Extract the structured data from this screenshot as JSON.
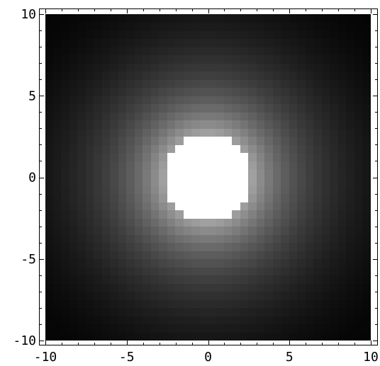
{
  "chart_data": {
    "type": "heatmap",
    "title": "",
    "xlabel": "",
    "ylabel": "",
    "xlim": [
      -10,
      10
    ],
    "ylim": [
      -10,
      10
    ],
    "grid": false,
    "colormap": "grayscale",
    "color_low": "#000000",
    "color_high": "#ffffff",
    "value_description": "radially symmetric intensity centered at (0,0); saturated white for r < 2.7, decaying toward black at the corners",
    "center": [
      0,
      0
    ],
    "saturation_radius": 2.7,
    "x_ticks": [
      {
        "value": -10,
        "label": "-10"
      },
      {
        "value": -5,
        "label": "-5"
      },
      {
        "value": 0,
        "label": "0"
      },
      {
        "value": 5,
        "label": "5"
      },
      {
        "value": 10,
        "label": "10"
      }
    ],
    "y_ticks": [
      {
        "value": 10,
        "label": "10"
      },
      {
        "value": 5,
        "label": "5"
      },
      {
        "value": 0,
        "label": "0"
      },
      {
        "value": -5,
        "label": "-5"
      },
      {
        "value": -10,
        "label": "-10"
      }
    ]
  }
}
